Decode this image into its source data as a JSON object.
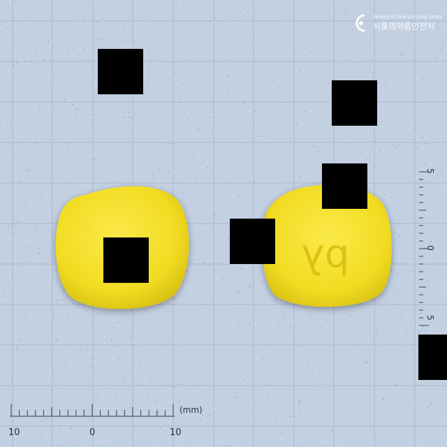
{
  "photo": {
    "background_color": "#c3d0e2",
    "grid_color": "#a9b9cf",
    "pill_color": "#f2df2a",
    "pill_shadow_color": "#cfbb16"
  },
  "pills": [
    {
      "name": "pill-left",
      "imprint": ""
    },
    {
      "name": "pill-right",
      "imprint": "bλ"
    }
  ],
  "logo": {
    "text_en": "Ministry of Food and Drug Safety",
    "text_ko": "식품의약품안전처"
  },
  "ruler_bottom": {
    "tick_labels": [
      "10",
      "0",
      "10"
    ],
    "unit": "(mm)"
  },
  "ruler_right": {
    "tick_labels": [
      "5",
      "0",
      "5"
    ]
  }
}
